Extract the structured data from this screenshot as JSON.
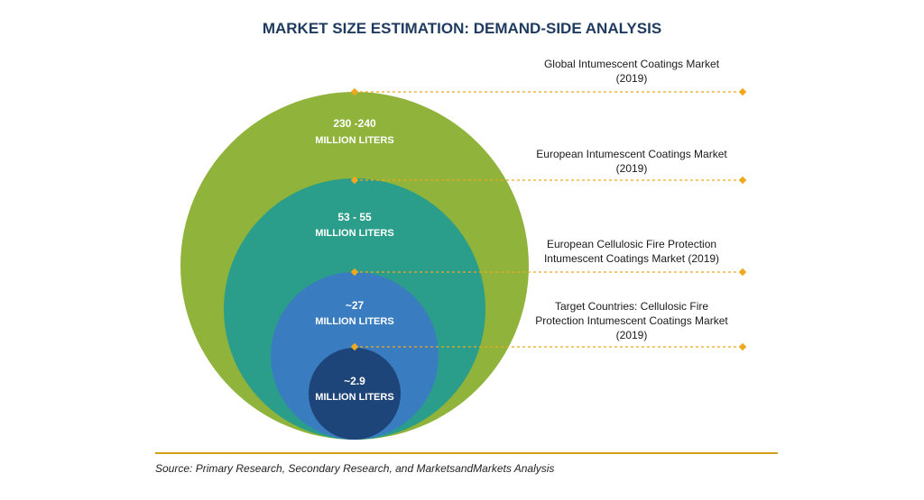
{
  "title": "MARKET SIZE ESTIMATION: DEMAND-SIDE ANALYSIS",
  "colors": {
    "global": "#8fb33b",
    "european": "#2a9e8a",
    "european_cellulosic": "#3a7cc0",
    "target": "#1e4579",
    "connector": "#f0a81e",
    "title": "#1f3a5f",
    "source_rule": "#d4a017"
  },
  "levels": [
    {
      "id": "global",
      "value": "230 -240",
      "unit": "MILLION LITERS",
      "label_lines": [
        "Global Intumescent Coatings Market",
        "(2019)"
      ]
    },
    {
      "id": "european",
      "value": "53 - 55",
      "unit": "MILLION LITERS",
      "label_lines": [
        "European Intumescent Coatings Market",
        "(2019)"
      ]
    },
    {
      "id": "european_cellulosic",
      "value": "~27",
      "unit": "MILLION LITERS",
      "label_lines": [
        "European Cellulosic Fire Protection",
        "Intumescent Coatings Market (2019)"
      ]
    },
    {
      "id": "target",
      "value": "~2.9",
      "unit": "MILLION LITERS",
      "label_lines": [
        "Target Countries: Cellulosic Fire",
        "Protection Intumescent Coatings Market",
        "(2019)"
      ]
    }
  ],
  "source": "Source: Primary Research, Secondary Research, and MarketsandMarkets Analysis"
}
